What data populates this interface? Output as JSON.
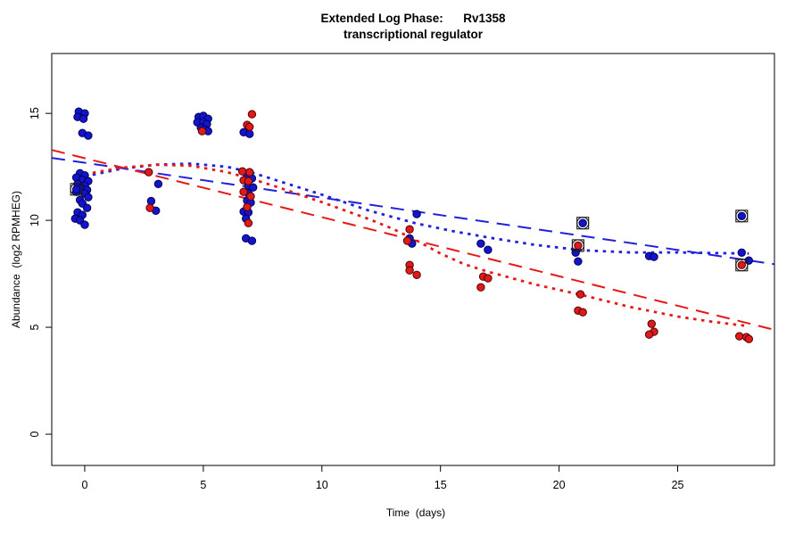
{
  "title": {
    "line1": "Extended Log Phase:      Rv1358",
    "line2": "transcriptional regulator"
  },
  "axes": {
    "x_label": "Time  (days)",
    "y_label": "Abundance  (log2 RPMHEG)"
  },
  "colors": {
    "background": "#ffffff",
    "axis": "#000000",
    "blue_point_fill": "#1414cc",
    "blue_point_stroke": "#000055",
    "red_point_fill": "#df1a1a",
    "red_point_stroke": "#550000",
    "blue_line": "#2020dd",
    "red_line": "#e51919",
    "marker_outline": "#1a1a1a"
  },
  "chart_data": {
    "type": "scatter",
    "title": "Extended Log Phase: Rv1358 transcriptional regulator",
    "xlabel": "Time (days)",
    "ylabel": "Abundance (log2 RPMHEG)",
    "xlim": [
      -1.39,
      29.08
    ],
    "ylim": [
      -1.46,
      17.8
    ],
    "x_ticks": [
      0,
      5,
      10,
      15,
      20,
      25
    ],
    "y_ticks": [
      0,
      5,
      10,
      15
    ],
    "grid": false,
    "legend": "none",
    "series": [
      {
        "name": "blue-points",
        "marker": "filled-circle",
        "points": [
          [
            -0.25,
            15.08
          ],
          [
            0.0,
            15.0
          ],
          [
            -0.3,
            14.83
          ],
          [
            -0.05,
            14.75
          ],
          [
            -0.1,
            14.08
          ],
          [
            0.15,
            13.96
          ],
          [
            -0.2,
            12.2
          ],
          [
            0.0,
            12.1
          ],
          [
            -0.35,
            12.0
          ],
          [
            -0.1,
            11.9
          ],
          [
            0.15,
            11.83
          ],
          [
            -0.3,
            11.7
          ],
          [
            0.0,
            11.62
          ],
          [
            -0.15,
            11.5
          ],
          [
            0.1,
            11.42
          ],
          [
            -0.35,
            11.33
          ],
          [
            0.0,
            11.25
          ],
          [
            0.15,
            11.08
          ],
          [
            -0.2,
            10.95
          ],
          [
            -0.1,
            10.79
          ],
          [
            0.1,
            10.58
          ],
          [
            -0.3,
            10.37
          ],
          [
            -0.1,
            10.25
          ],
          [
            -0.4,
            10.08
          ],
          [
            -0.2,
            10.0
          ],
          [
            0.0,
            9.79
          ],
          [
            3.1,
            11.7
          ],
          [
            2.8,
            10.9
          ],
          [
            3.0,
            10.45
          ],
          [
            4.8,
            14.83
          ],
          [
            5.0,
            14.88
          ],
          [
            5.2,
            14.75
          ],
          [
            4.75,
            14.58
          ],
          [
            5.0,
            14.6
          ],
          [
            5.15,
            14.5
          ],
          [
            4.9,
            14.33
          ],
          [
            5.05,
            14.25
          ],
          [
            5.2,
            14.17
          ],
          [
            6.7,
            14.12
          ],
          [
            6.95,
            14.04
          ],
          [
            6.85,
            12.04
          ],
          [
            7.05,
            11.96
          ],
          [
            6.9,
            11.62
          ],
          [
            7.1,
            11.54
          ],
          [
            6.9,
            11.25
          ],
          [
            6.85,
            10.92
          ],
          [
            7.0,
            10.83
          ],
          [
            6.7,
            10.41
          ],
          [
            6.9,
            10.37
          ],
          [
            6.8,
            10.08
          ],
          [
            6.8,
            9.16
          ],
          [
            7.05,
            9.04
          ],
          [
            14.0,
            10.29
          ],
          [
            13.7,
            9.16
          ],
          [
            13.8,
            8.91
          ],
          [
            16.7,
            8.91
          ],
          [
            17.0,
            8.62
          ],
          [
            20.7,
            8.49
          ],
          [
            20.8,
            8.08
          ],
          [
            23.8,
            8.33
          ],
          [
            24.0,
            8.29
          ],
          [
            27.7,
            8.49
          ],
          [
            28.0,
            8.12
          ]
        ]
      },
      {
        "name": "red-points",
        "marker": "filled-circle",
        "points": [
          [
            2.7,
            12.25
          ],
          [
            2.75,
            10.58
          ],
          [
            4.95,
            14.17
          ],
          [
            7.05,
            14.96
          ],
          [
            6.85,
            14.46
          ],
          [
            6.95,
            14.37
          ],
          [
            6.65,
            12.29
          ],
          [
            6.95,
            12.25
          ],
          [
            6.7,
            11.87
          ],
          [
            6.9,
            11.83
          ],
          [
            6.7,
            11.33
          ],
          [
            7.0,
            11.12
          ],
          [
            6.85,
            10.62
          ],
          [
            6.9,
            9.87
          ],
          [
            13.7,
            9.58
          ],
          [
            13.6,
            9.04
          ],
          [
            13.7,
            7.91
          ],
          [
            13.7,
            7.66
          ],
          [
            14.0,
            7.45
          ],
          [
            16.8,
            7.37
          ],
          [
            17.0,
            7.29
          ],
          [
            16.7,
            6.87
          ],
          [
            20.9,
            6.54
          ],
          [
            20.8,
            5.78
          ],
          [
            21.0,
            5.7
          ],
          [
            23.9,
            5.16
          ],
          [
            24.0,
            4.79
          ],
          [
            23.8,
            4.66
          ],
          [
            27.6,
            4.58
          ],
          [
            27.9,
            4.54
          ],
          [
            28.0,
            4.45
          ]
        ]
      }
    ],
    "flagged_points": [
      {
        "series": "blue",
        "x": -0.35,
        "y": 11.45
      },
      {
        "series": "blue",
        "x": 21.0,
        "y": 9.87
      },
      {
        "series": "blue",
        "x": 27.7,
        "y": 10.2
      },
      {
        "series": "red",
        "x": 20.8,
        "y": 8.82
      },
      {
        "series": "red",
        "x": 27.7,
        "y": 7.91
      }
    ],
    "trend_lines": [
      {
        "name": "blue-linear-fit",
        "style": "dashed",
        "color": "blue",
        "points": [
          [
            -1.39,
            12.92
          ],
          [
            29.08,
            7.95
          ]
        ]
      },
      {
        "name": "red-linear-fit",
        "style": "dashed",
        "color": "red",
        "points": [
          [
            -1.39,
            13.29
          ],
          [
            29.08,
            4.88
          ]
        ]
      },
      {
        "name": "blue-loess-fit",
        "style": "dotted",
        "color": "blue",
        "points": [
          [
            0,
            12.05
          ],
          [
            1.5,
            12.4
          ],
          [
            3,
            12.6
          ],
          [
            4.5,
            12.65
          ],
          [
            6,
            12.5
          ],
          [
            7,
            12.25
          ],
          [
            8,
            11.9
          ],
          [
            10,
            11.2
          ],
          [
            12,
            10.45
          ],
          [
            14,
            9.85
          ],
          [
            15.5,
            9.5
          ],
          [
            17,
            9.2
          ],
          [
            19,
            8.85
          ],
          [
            21,
            8.6
          ],
          [
            23,
            8.5
          ],
          [
            25,
            8.5
          ],
          [
            26.5,
            8.47
          ],
          [
            28,
            8.45
          ]
        ]
      },
      {
        "name": "red-loess-fit",
        "style": "dotted",
        "color": "red",
        "points": [
          [
            0,
            12.15
          ],
          [
            1.5,
            12.45
          ],
          [
            3,
            12.6
          ],
          [
            4.5,
            12.55
          ],
          [
            6,
            12.25
          ],
          [
            7,
            11.95
          ],
          [
            8,
            11.6
          ],
          [
            10,
            10.85
          ],
          [
            12,
            10.05
          ],
          [
            13,
            9.6
          ],
          [
            14,
            9.05
          ],
          [
            15,
            8.45
          ],
          [
            16,
            7.95
          ],
          [
            17,
            7.6
          ],
          [
            19,
            7.0
          ],
          [
            21,
            6.5
          ],
          [
            23,
            5.95
          ],
          [
            25,
            5.5
          ],
          [
            26.5,
            5.25
          ],
          [
            28,
            5.05
          ]
        ]
      }
    ]
  }
}
